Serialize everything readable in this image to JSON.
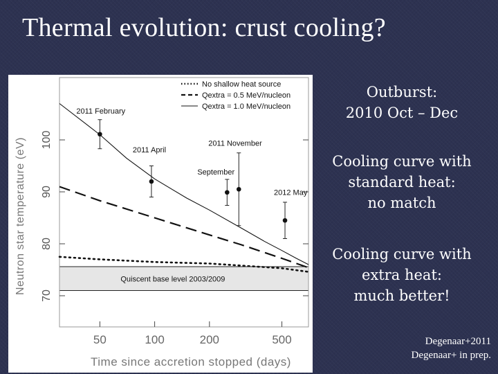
{
  "slide": {
    "title": "Thermal evolution: crust cooling?",
    "side_blocks": [
      [
        "Outburst:",
        "2010 Oct – Dec"
      ],
      [
        "Cooling curve with",
        "standard heat:",
        "no match"
      ],
      [
        "Cooling curve with",
        "extra heat:",
        "much better!"
      ]
    ],
    "refs": [
      "Degenaar+2011",
      "Degenaar+ in prep."
    ]
  },
  "chart_data": {
    "type": "line",
    "title": "",
    "xlabel": "Time since accretion stopped (days)",
    "ylabel": "Neutron star temperature (eV)",
    "xscale": "log",
    "xlim": [
      30,
      700
    ],
    "ylim": [
      64,
      112
    ],
    "xticks": [
      50,
      100,
      200,
      500
    ],
    "yticks": [
      70,
      80,
      90,
      100
    ],
    "base_band": {
      "ymin": 71,
      "ymax": 75.6,
      "label": "Quiscent base level 2003/2009"
    },
    "legend": {
      "position": "top-right",
      "entries": [
        {
          "label": "No shallow heat source",
          "style": "dotted"
        },
        {
          "label": "Qextra = 0.5 MeV/nucleon",
          "style": "dashed"
        },
        {
          "label": "Qextra = 1.0 MeV/nucleon",
          "style": "solid"
        }
      ]
    },
    "series": [
      {
        "name": "No shallow heat source",
        "style": "dotted",
        "x": [
          30,
          50,
          100,
          200,
          300,
          500,
          700
        ],
        "y": [
          77.5,
          77.0,
          76.5,
          76.2,
          75.8,
          75.3,
          74.6
        ]
      },
      {
        "name": "Qextra = 0.5 MeV/nucleon",
        "style": "dashed",
        "x": [
          30,
          50,
          100,
          200,
          300,
          500,
          700
        ],
        "y": [
          91.0,
          88.3,
          85.0,
          81.7,
          79.8,
          77.2,
          75.4
        ]
      },
      {
        "name": "Qextra = 1.0 MeV/nucleon",
        "style": "solid",
        "x": [
          30,
          50,
          70,
          100,
          150,
          200,
          300,
          400,
          500,
          600,
          700
        ],
        "y": [
          107.0,
          101.0,
          96.5,
          92.5,
          88.8,
          86.5,
          83.0,
          80.5,
          78.7,
          77.2,
          76.0
        ]
      }
    ],
    "observations": [
      {
        "label": "2011 February",
        "x": 50,
        "y": 101.1,
        "err_low": 2.8,
        "err_high": 2.8
      },
      {
        "label": "2011 April",
        "x": 96,
        "y": 92.0,
        "err_low": 3.0,
        "err_high": 3.0
      },
      {
        "label": "September",
        "x": 250,
        "y": 89.9,
        "err_low": 2.5,
        "err_high": 2.5
      },
      {
        "label": "2011 November",
        "x": 290,
        "y": 90.5,
        "err_low": 7.0,
        "err_high": 7.0
      },
      {
        "label": "2012 May",
        "x": 520,
        "y": 84.5,
        "err_low": 3.5,
        "err_high": 3.5
      }
    ]
  }
}
